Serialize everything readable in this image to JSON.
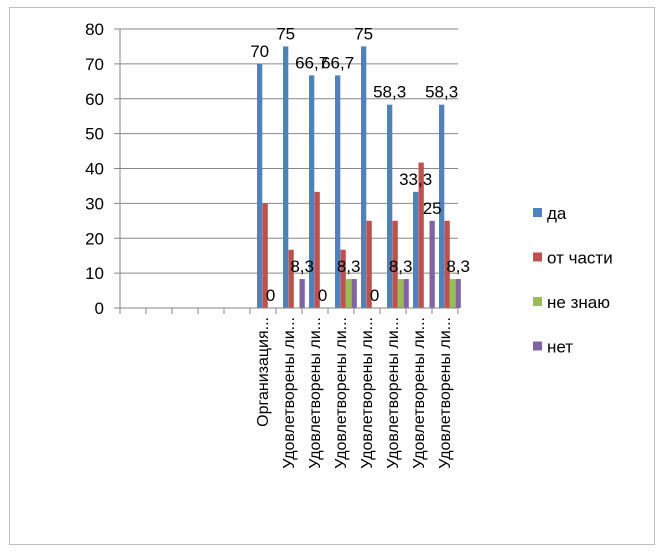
{
  "chart_data": {
    "type": "bar",
    "categories": [
      "",
      "",
      "",
      "",
      "",
      "Организация...",
      "Удовлетворены ли...",
      "Удовлетворены ли...",
      "Удовлетворены ли...",
      "Удовлетворены ли...",
      "Удовлетворены ли...",
      "Удовлетворены ли...",
      "Удовлетворены ли..."
    ],
    "series": [
      {
        "name": "да",
        "color": "#4f81bd",
        "values": [
          null,
          null,
          null,
          null,
          null,
          70,
          75,
          66.7,
          66.7,
          75,
          58.3,
          33.3,
          58.3
        ]
      },
      {
        "name": "от части",
        "color": "#c0504d",
        "values": [
          null,
          null,
          null,
          null,
          null,
          30,
          16.7,
          33.3,
          16.7,
          25,
          25,
          41.7,
          25
        ]
      },
      {
        "name": "не знаю",
        "color": "#9bbb59",
        "values": [
          null,
          null,
          null,
          null,
          null,
          0,
          0,
          0,
          8.3,
          0,
          8.3,
          0,
          8.3
        ]
      },
      {
        "name": "нет",
        "color": "#8064a2",
        "values": [
          null,
          null,
          null,
          null,
          null,
          0,
          8.3,
          0,
          8.3,
          0,
          8.3,
          25,
          8.3
        ]
      }
    ],
    "data_labels": [
      {
        "text": "70",
        "cat": 5,
        "series": 0
      },
      {
        "text": "75",
        "cat": 6,
        "series": 0
      },
      {
        "text": "66,7",
        "cat": 7,
        "series": 0
      },
      {
        "text": "66,7",
        "cat": 8,
        "series": 0
      },
      {
        "text": "75",
        "cat": 9,
        "series": 0
      },
      {
        "text": "58,3",
        "cat": 10,
        "series": 0
      },
      {
        "text": "58,3",
        "cat": 12,
        "series": 0
      },
      {
        "text": "0",
        "cat": 5,
        "series": 2
      },
      {
        "text": "8,3",
        "cat": 6,
        "series": 3
      },
      {
        "text": "0",
        "cat": 7,
        "series": 2
      },
      {
        "text": "8,3",
        "cat": 8,
        "series": 2
      },
      {
        "text": "0",
        "cat": 9,
        "series": 2
      },
      {
        "text": "8,3",
        "cat": 10,
        "series": 2
      },
      {
        "text": "33,3",
        "cat": 11,
        "series": 0
      },
      {
        "text": "25",
        "cat": 11,
        "series": 3
      },
      {
        "text": "8,3",
        "cat": 12,
        "series": 3
      }
    ],
    "ylim": [
      0,
      80
    ],
    "yticks": [
      0,
      10,
      20,
      30,
      40,
      50,
      60,
      70,
      80
    ],
    "grid": true,
    "legend_position": "right"
  }
}
